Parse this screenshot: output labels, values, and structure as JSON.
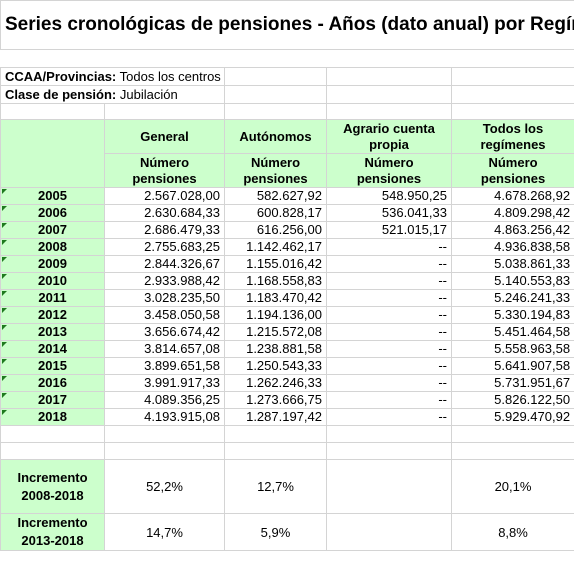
{
  "title": "Series cronológicas de pensiones - Años (dato anual) por Regímenes",
  "filters": [
    {
      "label": "CCAA/Provincias:",
      "value": "Todos los centros"
    },
    {
      "label": "Clase de pensión:",
      "value": "Jubilación"
    }
  ],
  "columns": [
    {
      "name": "General",
      "sub": "Número pensiones"
    },
    {
      "name": "Autónomos",
      "sub": "Número pensiones"
    },
    {
      "name": "Agrario cuenta propia",
      "sub": "Número pensiones"
    },
    {
      "name": "Todos los regímenes",
      "sub": "Número pensiones"
    }
  ],
  "rows": [
    {
      "year": "2005",
      "v": [
        "2.567.028,00",
        "582.627,92",
        "548.950,25",
        "4.678.268,92"
      ]
    },
    {
      "year": "2006",
      "v": [
        "2.630.684,33",
        "600.828,17",
        "536.041,33",
        "4.809.298,42"
      ]
    },
    {
      "year": "2007",
      "v": [
        "2.686.479,33",
        "616.256,00",
        "521.015,17",
        "4.863.256,42"
      ]
    },
    {
      "year": "2008",
      "v": [
        "2.755.683,25",
        "1.142.462,17",
        "--",
        "4.936.838,58"
      ]
    },
    {
      "year": "2009",
      "v": [
        "2.844.326,67",
        "1.155.016,42",
        "--",
        "5.038.861,33"
      ]
    },
    {
      "year": "2010",
      "v": [
        "2.933.988,42",
        "1.168.558,83",
        "--",
        "5.140.553,83"
      ]
    },
    {
      "year": "2011",
      "v": [
        "3.028.235,50",
        "1.183.470,42",
        "--",
        "5.246.241,33"
      ]
    },
    {
      "year": "2012",
      "v": [
        "3.458.050,58",
        "1.194.136,00",
        "--",
        "5.330.194,83"
      ]
    },
    {
      "year": "2013",
      "v": [
        "3.656.674,42",
        "1.215.572,08",
        "--",
        "5.451.464,58"
      ]
    },
    {
      "year": "2014",
      "v": [
        "3.814.657,08",
        "1.238.881,58",
        "--",
        "5.558.963,58"
      ]
    },
    {
      "year": "2015",
      "v": [
        "3.899.651,58",
        "1.250.543,33",
        "--",
        "5.641.907,58"
      ]
    },
    {
      "year": "2016",
      "v": [
        "3.991.917,33",
        "1.262.246,33",
        "--",
        "5.731.951,67"
      ]
    },
    {
      "year": "2017",
      "v": [
        "4.089.356,25",
        "1.273.666,75",
        "--",
        "5.826.122,50"
      ]
    },
    {
      "year": "2018",
      "v": [
        "4.193.915,08",
        "1.287.197,42",
        "--",
        "5.929.470,92"
      ]
    }
  ],
  "increments": [
    {
      "label": "Incremento 2008-2018",
      "v": [
        "52,2%",
        "12,7%",
        "",
        "20,1%"
      ]
    },
    {
      "label": "Incremento 2013-2018",
      "v": [
        "14,7%",
        "5,9%",
        "",
        "8,8%"
      ]
    }
  ],
  "colors": {
    "header_fill": "#ccffcc",
    "grid_line": "#d4d4d4",
    "marker": "#1f7a1f"
  }
}
